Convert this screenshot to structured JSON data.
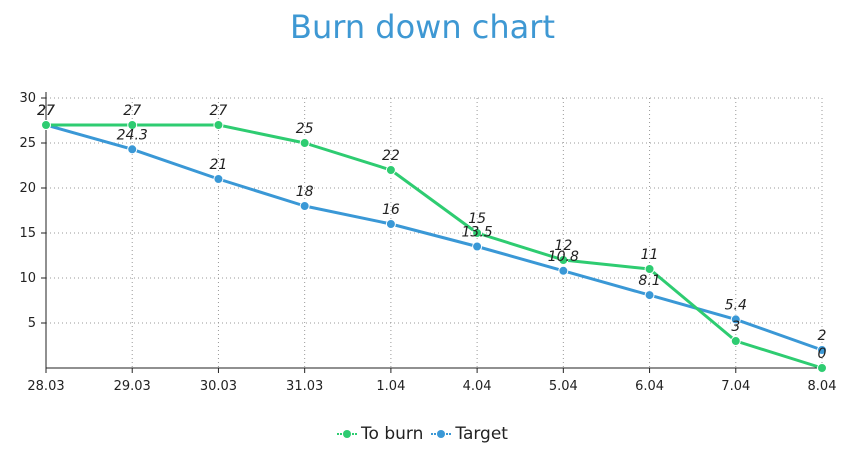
{
  "chart_data": {
    "type": "line",
    "title": "Burn down chart",
    "categories": [
      "28.03",
      "29.03",
      "30.03",
      "31.03",
      "1.04",
      "4.04",
      "5.04",
      "6.04",
      "7.04",
      "8.04"
    ],
    "series": [
      {
        "name": "To burn",
        "color": "#2ecc71",
        "values": [
          27,
          27,
          27,
          25,
          22,
          15,
          12,
          11,
          3,
          0
        ]
      },
      {
        "name": "Target",
        "color": "#3a98d6",
        "values": [
          27,
          24.3,
          21,
          18,
          16,
          13.5,
          10.8,
          8.1,
          5.4,
          2
        ]
      }
    ],
    "yticks": [
      5,
      10,
      15,
      20,
      25,
      30
    ],
    "ylim": [
      0,
      30
    ],
    "grid": true,
    "legend_position": "bottom"
  }
}
